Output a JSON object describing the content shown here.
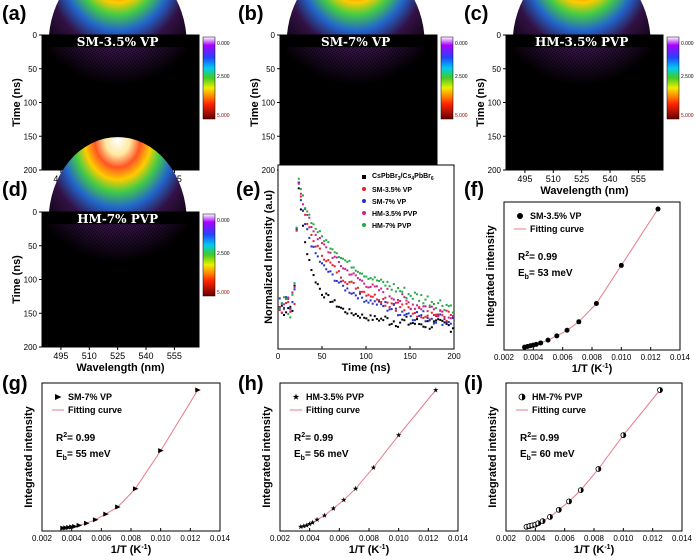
{
  "colors": {
    "curve": "#e87a8a",
    "cs_series": "#000000",
    "sm35": "#e8202a",
    "sm7": "#2233cc",
    "hm35": "#cc2288",
    "hm7": "#22aa44"
  },
  "colorbar": {
    "labels": [
      "0.000",
      "2.500",
      "5.000"
    ]
  },
  "heatmaps": [
    {
      "letter": "(a)",
      "title": "SM-3.5% VP"
    },
    {
      "letter": "(b)",
      "title": "SM-7% VP"
    },
    {
      "letter": "(c)",
      "title": "HM-3.5% PVP"
    },
    {
      "letter": "(d)",
      "title": "HM-7% PVP"
    }
  ],
  "heatmap_axes": {
    "xlabel": "Wavelength (nm)",
    "ylabel": "Time (ns)",
    "xticks": [
      "495",
      "510",
      "525",
      "540",
      "555"
    ],
    "yticks": [
      "0",
      "50",
      "100",
      "150",
      "200"
    ]
  },
  "fits": [
    {
      "letter": "(f)",
      "legend": "SM-3.5% VP",
      "marker": "circle",
      "r2": "R",
      "r2_sup": "2",
      "r2_val": "= 0.99",
      "eb": "E",
      "eb_sub": "b",
      "eb_val": "= 53 meV"
    },
    {
      "letter": "(g)",
      "legend": "SM-7% VP",
      "marker": "triangle",
      "r2": "R",
      "r2_sup": "2",
      "r2_val": "= 0.99",
      "eb": "E",
      "eb_sub": "b",
      "eb_val": "= 55 meV"
    },
    {
      "letter": "(h)",
      "legend": "HM-3.5% PVP",
      "marker": "star",
      "r2": "R",
      "r2_sup": "2",
      "r2_val": "= 0.99",
      "eb": "E",
      "eb_sub": "b",
      "eb_val": "= 56 meV"
    },
    {
      "letter": "(i)",
      "legend": "HM-7% PVP",
      "marker": "half",
      "r2": "R",
      "r2_sup": "2",
      "r2_val": "= 0.99",
      "eb": "E",
      "eb_sub": "b",
      "eb_val": "= 60 meV"
    }
  ],
  "fit_axes": {
    "fitting_label": "Fitting curve",
    "ylabel": "Integrated intensity",
    "xlabel_main": "1/T (K",
    "xlabel_sup": "-1",
    "xlabel_end": ")",
    "xticks": [
      "0.002",
      "0.004",
      "0.006",
      "0.008",
      "0.010",
      "0.012",
      "0.014"
    ]
  },
  "decay": {
    "letter": "(e)",
    "xlabel": "Time (ns)",
    "ylabel": "Normalized Intensity (a.u)",
    "xticks": [
      "0",
      "50",
      "100",
      "150",
      "200"
    ],
    "legend_cs": "CsPbBr",
    "legend_cs_sub1": "3",
    "legend_cs_mid": "/Cs",
    "legend_cs_sub2": "4",
    "legend_cs_mid2": "PbBr",
    "legend_cs_sub3": "6",
    "legend": [
      "SM-3.5% VP",
      "SM-7% VP",
      "HM-3.5% PVP",
      "HM-7% PVP"
    ]
  },
  "chart_data": [
    {
      "type": "heatmap",
      "title": "SM-3.5% VP",
      "xlabel": "Wavelength (nm)",
      "ylabel": "Time (ns)",
      "xlim": [
        485,
        568
      ],
      "ylim": [
        200,
        0
      ],
      "peak_wavelength": 525,
      "peak_time": 25,
      "colorbar_range": [
        0,
        5
      ]
    },
    {
      "type": "heatmap",
      "title": "SM-7% VP",
      "xlabel": "Wavelength (nm)",
      "ylabel": "Time (ns)",
      "xlim": [
        485,
        568
      ],
      "ylim": [
        200,
        0
      ],
      "peak_wavelength": 525,
      "peak_time": 25,
      "colorbar_range": [
        0,
        5
      ]
    },
    {
      "type": "heatmap",
      "title": "HM-3.5% PVP",
      "xlabel": "Wavelength (nm)",
      "ylabel": "Time (ns)",
      "xlim": [
        485,
        568
      ],
      "ylim": [
        200,
        0
      ],
      "peak_wavelength": 525,
      "peak_time": 25,
      "colorbar_range": [
        0,
        5
      ]
    },
    {
      "type": "heatmap",
      "title": "HM-7% PVP",
      "xlabel": "Wavelength (nm)",
      "ylabel": "Time (ns)",
      "xlim": [
        485,
        568
      ],
      "ylim": [
        200,
        0
      ],
      "peak_wavelength": 525,
      "peak_time": 25,
      "colorbar_range": [
        0,
        5
      ]
    },
    {
      "type": "line",
      "title": "",
      "xlabel": "Time (ns)",
      "ylabel": "Normalized Intensity (a.u)",
      "xlim": [
        0,
        200
      ],
      "ylim": [
        0,
        1.05
      ],
      "x": [
        20,
        22,
        25,
        30,
        40,
        50,
        75,
        100,
        150,
        200
      ],
      "series": [
        {
          "name": "CsPbBr3/Cs4PbBr6",
          "values": [
            0.2,
            1.0,
            0.85,
            0.62,
            0.42,
            0.32,
            0.22,
            0.18,
            0.15,
            0.13
          ]
        },
        {
          "name": "SM-3.5% VP",
          "values": [
            0.2,
            1.0,
            0.9,
            0.76,
            0.62,
            0.54,
            0.4,
            0.32,
            0.22,
            0.18
          ]
        },
        {
          "name": "SM-7% VP",
          "values": [
            0.2,
            1.0,
            0.88,
            0.72,
            0.57,
            0.48,
            0.35,
            0.28,
            0.2,
            0.16
          ]
        },
        {
          "name": "HM-3.5% PVP",
          "values": [
            0.2,
            1.0,
            0.92,
            0.8,
            0.68,
            0.6,
            0.46,
            0.37,
            0.26,
            0.2
          ]
        },
        {
          "name": "HM-7% PVP",
          "values": [
            0.2,
            1.0,
            0.93,
            0.83,
            0.71,
            0.64,
            0.51,
            0.42,
            0.31,
            0.24
          ]
        }
      ]
    },
    {
      "type": "scatter",
      "title": "",
      "xlabel": "1/T (K-1)",
      "ylabel": "Integrated intensity",
      "xlim": [
        0.002,
        0.014
      ],
      "ylim": [
        0,
        1.05
      ],
      "series": [
        {
          "name": "SM-3.5% VP",
          "x": [
            0.0034,
            0.0036,
            0.0038,
            0.004,
            0.0042,
            0.0045,
            0.005,
            0.0056,
            0.0063,
            0.0071,
            0.0083,
            0.01,
            0.0125
          ],
          "values": [
            0.02,
            0.025,
            0.03,
            0.035,
            0.04,
            0.05,
            0.07,
            0.1,
            0.14,
            0.2,
            0.33,
            0.6,
            1.0
          ]
        }
      ]
    },
    {
      "type": "scatter",
      "title": "",
      "xlabel": "1/T (K-1)",
      "ylabel": "Integrated intensity",
      "xlim": [
        0.002,
        0.014
      ],
      "ylim": [
        0,
        1.05
      ],
      "series": [
        {
          "name": "SM-7% VP",
          "x": [
            0.0034,
            0.0036,
            0.0038,
            0.004,
            0.0042,
            0.0045,
            0.005,
            0.0056,
            0.0063,
            0.0071,
            0.0083,
            0.01,
            0.0125
          ],
          "values": [
            0.02,
            0.022,
            0.025,
            0.028,
            0.032,
            0.04,
            0.055,
            0.08,
            0.12,
            0.17,
            0.3,
            0.57,
            1.0
          ]
        }
      ]
    },
    {
      "type": "scatter",
      "title": "",
      "xlabel": "1/T (K-1)",
      "ylabel": "Integrated intensity",
      "xlim": [
        0.002,
        0.014
      ],
      "ylim": [
        0,
        1.05
      ],
      "series": [
        {
          "name": "HM-3.5% PVP",
          "x": [
            0.0034,
            0.0036,
            0.0038,
            0.004,
            0.0042,
            0.0045,
            0.005,
            0.0056,
            0.0063,
            0.0071,
            0.0083,
            0.01,
            0.0125
          ],
          "values": [
            0.03,
            0.035,
            0.04,
            0.05,
            0.06,
            0.08,
            0.11,
            0.16,
            0.22,
            0.3,
            0.45,
            0.68,
            1.0
          ]
        }
      ]
    },
    {
      "type": "scatter",
      "title": "",
      "xlabel": "1/T (K-1)",
      "ylabel": "Integrated intensity",
      "xlim": [
        0.002,
        0.014
      ],
      "ylim": [
        0,
        1.05
      ],
      "series": [
        {
          "name": "HM-7% PVP",
          "x": [
            0.0034,
            0.0036,
            0.0038,
            0.004,
            0.0042,
            0.0045,
            0.005,
            0.0056,
            0.0063,
            0.0071,
            0.0083,
            0.01,
            0.0125
          ],
          "values": [
            0.03,
            0.035,
            0.04,
            0.045,
            0.055,
            0.07,
            0.1,
            0.15,
            0.21,
            0.29,
            0.44,
            0.68,
            1.0
          ]
        }
      ]
    }
  ]
}
